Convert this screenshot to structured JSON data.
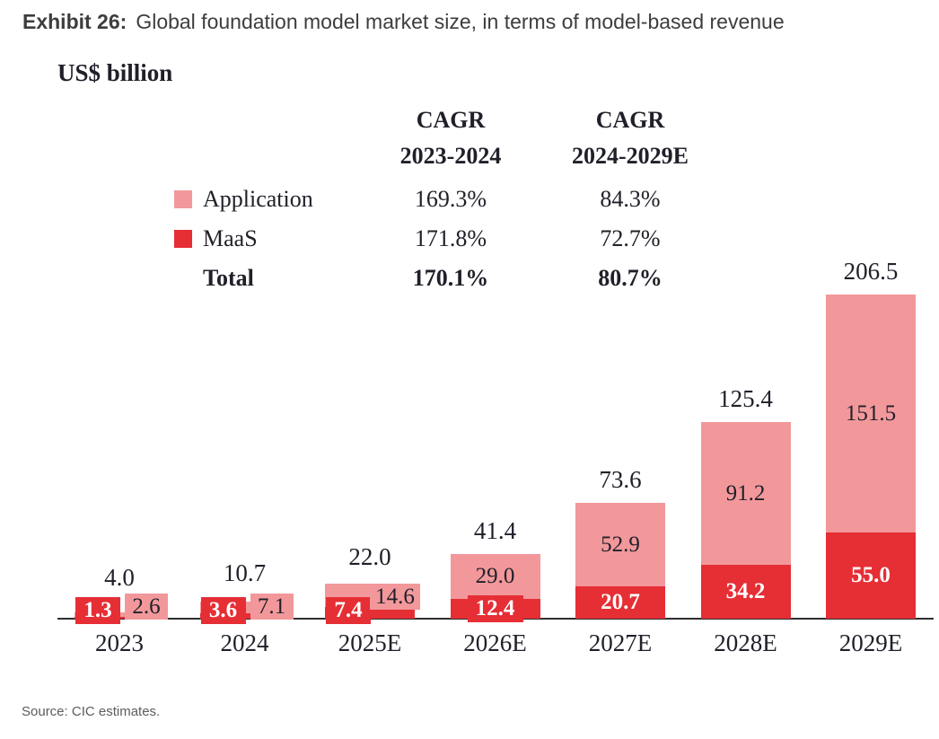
{
  "title": {
    "label": "Exhibit 26:",
    "text": "Global foundation model market size, in terms of model-based revenue"
  },
  "axis_unit": "US$ billion",
  "source": "Source: CIC estimates.",
  "colors": {
    "application": "#F2989B",
    "maas": "#E62E35",
    "axis": "#2e2e2e",
    "chart_text": "#20202a",
    "title_text": "#3d3d3d",
    "source_text": "#5c5c5c"
  },
  "legend": {
    "col1_header": [
      "CAGR",
      "2023-2024"
    ],
    "col2_header": [
      "CAGR",
      "2024-2029E"
    ],
    "rows": [
      {
        "label": "Application",
        "swatch": "application",
        "cagr_2023_2024": "169.3%",
        "cagr_2024_2029e": "84.3%"
      },
      {
        "label": "MaaS",
        "swatch": "maas",
        "cagr_2023_2024": "171.8%",
        "cagr_2024_2029e": "72.7%"
      },
      {
        "label": "Total",
        "swatch": "none",
        "cagr_2023_2024": "170.1%",
        "cagr_2024_2029e": "80.7%"
      }
    ]
  },
  "chart_data": {
    "type": "bar",
    "stacked": true,
    "title": "Global foundation model market size, in terms of model-based revenue",
    "ylabel": "US$ billion",
    "grid": false,
    "legend_position": "top-left-table",
    "categories": [
      "2023",
      "2024",
      "2025E",
      "2026E",
      "2027E",
      "2028E",
      "2029E"
    ],
    "series": [
      {
        "name": "MaaS",
        "color": "#E62E35",
        "values": [
          1.3,
          3.6,
          7.4,
          12.4,
          20.7,
          34.2,
          55.0
        ]
      },
      {
        "name": "Application",
        "color": "#F2989B",
        "values": [
          2.6,
          7.1,
          14.6,
          29.0,
          52.9,
          91.2,
          151.5
        ]
      }
    ],
    "totals": [
      4.0,
      10.7,
      22.0,
      41.4,
      73.6,
      125.4,
      206.5
    ],
    "ylim": [
      0,
      220
    ]
  }
}
